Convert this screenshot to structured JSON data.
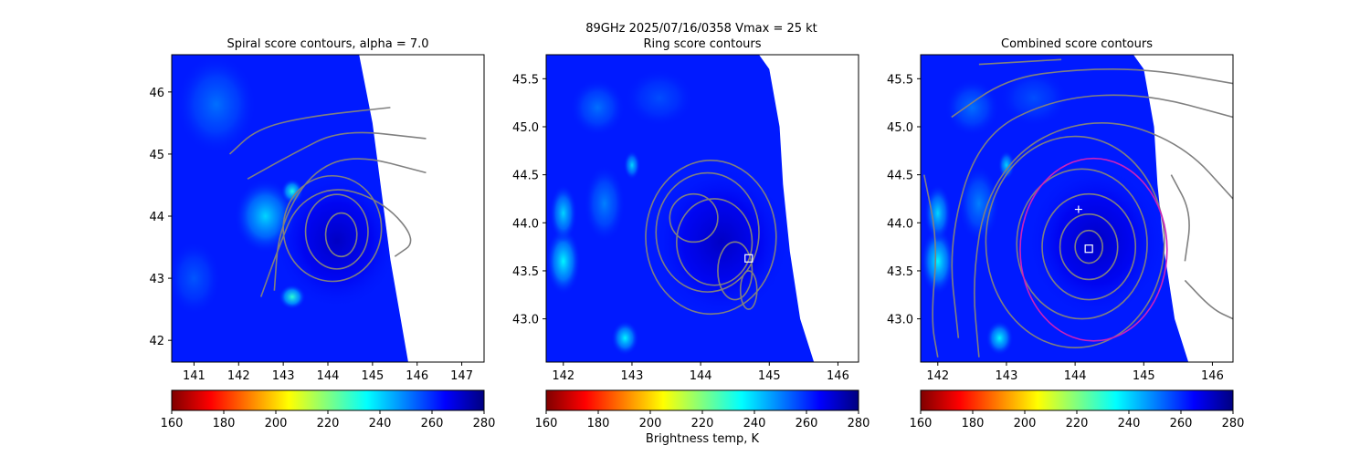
{
  "figure": {
    "suptitle_line1": "89GHz  2025/07/16/0358    Vmax = 25 kt",
    "colorbar_label": "Brightness temp, K"
  },
  "colormap": {
    "name": "jet_r",
    "stops": [
      "#800000",
      "#ff0000",
      "#ff8000",
      "#ffff00",
      "#80ff80",
      "#00ffff",
      "#0080ff",
      "#0000ff",
      "#000080"
    ]
  },
  "contour_color": "#808080",
  "ring_circle_color": "#cc22bb",
  "chart_data": [
    {
      "type": "heatmap",
      "title": "Spiral score contours, alpha =  7.0",
      "xlim": [
        140.5,
        147.5
      ],
      "ylim": [
        41.65,
        46.6
      ],
      "x_ticks": [
        141,
        142,
        143,
        144,
        145,
        146,
        147
      ],
      "y_ticks": [
        42,
        43,
        44,
        45,
        46
      ],
      "colorbar": {
        "min": 160,
        "max": 280,
        "ticks": [
          160,
          180,
          200,
          220,
          240,
          260,
          280
        ]
      },
      "swath_right_edge": [
        [
          145.8,
          41.65
        ],
        [
          145.4,
          43.3
        ],
        [
          145.0,
          45.5
        ],
        [
          144.7,
          46.6
        ]
      ],
      "tb_features": [
        {
          "x": 142.6,
          "y": 44.0,
          "tb": 240,
          "rx": 0.7,
          "ry": 0.6
        },
        {
          "x": 143.2,
          "y": 42.7,
          "tb": 230,
          "rx": 0.3,
          "ry": 0.2
        },
        {
          "x": 143.2,
          "y": 44.4,
          "tb": 232,
          "rx": 0.25,
          "ry": 0.2
        },
        {
          "x": 141.5,
          "y": 45.8,
          "tb": 252,
          "rx": 0.9,
          "ry": 0.8
        },
        {
          "x": 141.0,
          "y": 43.0,
          "tb": 255,
          "rx": 0.6,
          "ry": 0.6
        },
        {
          "x": 144.2,
          "y": 43.6,
          "tb": 272,
          "rx": 1.4,
          "ry": 1.1
        }
      ],
      "contours": [
        {
          "type": "ellipse",
          "cx": 144.3,
          "cy": 43.7,
          "rx": 0.35,
          "ry": 0.35
        },
        {
          "type": "ellipse",
          "cx": 144.2,
          "cy": 43.75,
          "rx": 0.7,
          "ry": 0.6
        },
        {
          "type": "ellipse",
          "cx": 144.1,
          "cy": 43.8,
          "rx": 1.1,
          "ry": 0.85
        },
        {
          "type": "line",
          "points": [
            [
              142.5,
              42.7
            ],
            [
              142.9,
              43.5
            ],
            [
              143.3,
              44.2
            ],
            [
              144.2,
              44.5
            ],
            [
              145.3,
              44.2
            ],
            [
              146.0,
              43.6
            ],
            [
              145.5,
              43.35
            ]
          ]
        },
        {
          "type": "line",
          "points": [
            [
              142.8,
              42.8
            ],
            [
              142.9,
              43.8
            ],
            [
              143.6,
              44.7
            ],
            [
              144.6,
              45.0
            ],
            [
              146.2,
              44.7
            ]
          ]
        },
        {
          "type": "line",
          "points": [
            [
              142.2,
              44.6
            ],
            [
              143.2,
              45.0
            ],
            [
              144.3,
              45.4
            ],
            [
              146.2,
              45.25
            ]
          ]
        },
        {
          "type": "line",
          "points": [
            [
              141.8,
              45.0
            ],
            [
              142.4,
              45.4
            ],
            [
              143.5,
              45.6
            ],
            [
              145.4,
              45.75
            ]
          ]
        }
      ]
    },
    {
      "type": "heatmap",
      "title": "Ring score contours",
      "xlim": [
        141.75,
        146.3
      ],
      "ylim": [
        42.55,
        45.75
      ],
      "x_ticks": [
        142,
        143,
        144,
        145,
        146
      ],
      "y_ticks": [
        43.0,
        43.5,
        44.0,
        44.5,
        45.0,
        45.5
      ],
      "colorbar": {
        "min": 160,
        "max": 280,
        "ticks": [
          160,
          180,
          200,
          220,
          240,
          260,
          280
        ]
      },
      "swath_right_edge": [
        [
          145.65,
          42.55
        ],
        [
          145.45,
          43.0
        ],
        [
          145.3,
          43.7
        ],
        [
          145.2,
          44.4
        ],
        [
          145.15,
          45.0
        ],
        [
          145.0,
          45.6
        ],
        [
          144.85,
          45.75
        ]
      ],
      "tb_features": [
        {
          "x": 142.0,
          "y": 43.6,
          "tb": 236,
          "rx": 0.25,
          "ry": 0.35
        },
        {
          "x": 142.0,
          "y": 44.1,
          "tb": 240,
          "rx": 0.2,
          "ry": 0.3
        },
        {
          "x": 142.9,
          "y": 42.8,
          "tb": 236,
          "rx": 0.2,
          "ry": 0.18
        },
        {
          "x": 143.0,
          "y": 44.6,
          "tb": 240,
          "rx": 0.12,
          "ry": 0.15
        },
        {
          "x": 142.5,
          "y": 45.2,
          "tb": 252,
          "rx": 0.4,
          "ry": 0.3
        },
        {
          "x": 143.4,
          "y": 45.3,
          "tb": 256,
          "rx": 0.5,
          "ry": 0.3
        },
        {
          "x": 142.6,
          "y": 44.2,
          "tb": 250,
          "rx": 0.3,
          "ry": 0.4
        },
        {
          "x": 144.3,
          "y": 43.8,
          "tb": 272,
          "rx": 1.0,
          "ry": 0.8
        }
      ],
      "contours": [
        {
          "type": "ellipse",
          "cx": 144.15,
          "cy": 43.85,
          "rx": 0.95,
          "ry": 0.8
        },
        {
          "type": "ellipse",
          "cx": 144.1,
          "cy": 43.9,
          "rx": 0.75,
          "ry": 0.62
        },
        {
          "type": "ellipse",
          "cx": 144.2,
          "cy": 43.8,
          "rx": 0.55,
          "ry": 0.45
        },
        {
          "type": "ellipse",
          "cx": 143.9,
          "cy": 44.05,
          "rx": 0.35,
          "ry": 0.25
        },
        {
          "type": "ellipse",
          "cx": 144.5,
          "cy": 43.5,
          "rx": 0.25,
          "ry": 0.3
        },
        {
          "type": "ellipse",
          "cx": 144.7,
          "cy": 43.3,
          "rx": 0.12,
          "ry": 0.2
        }
      ],
      "markers": [
        {
          "type": "square",
          "x": 144.7,
          "y": 43.63
        }
      ]
    },
    {
      "type": "heatmap",
      "title": "Combined score contours",
      "xlim": [
        141.75,
        146.3
      ],
      "ylim": [
        42.55,
        45.75
      ],
      "x_ticks": [
        142,
        143,
        144,
        145,
        146
      ],
      "y_ticks": [
        43.0,
        43.5,
        44.0,
        44.5,
        45.0,
        45.5
      ],
      "colorbar": {
        "min": 160,
        "max": 280,
        "ticks": [
          160,
          180,
          200,
          220,
          240,
          260,
          280
        ]
      },
      "swath_right_edge": [
        [
          145.65,
          42.55
        ],
        [
          145.45,
          43.0
        ],
        [
          145.3,
          43.7
        ],
        [
          145.2,
          44.4
        ],
        [
          145.15,
          45.0
        ],
        [
          145.0,
          45.6
        ],
        [
          144.85,
          45.75
        ]
      ],
      "tb_features": [
        {
          "x": 142.0,
          "y": 43.6,
          "tb": 236,
          "rx": 0.25,
          "ry": 0.35
        },
        {
          "x": 142.0,
          "y": 44.1,
          "tb": 240,
          "rx": 0.2,
          "ry": 0.3
        },
        {
          "x": 142.9,
          "y": 42.8,
          "tb": 236,
          "rx": 0.2,
          "ry": 0.18
        },
        {
          "x": 143.0,
          "y": 44.6,
          "tb": 240,
          "rx": 0.12,
          "ry": 0.15
        },
        {
          "x": 142.5,
          "y": 45.2,
          "tb": 252,
          "rx": 0.4,
          "ry": 0.3
        },
        {
          "x": 143.4,
          "y": 45.3,
          "tb": 256,
          "rx": 0.5,
          "ry": 0.3
        },
        {
          "x": 142.6,
          "y": 44.2,
          "tb": 250,
          "rx": 0.3,
          "ry": 0.4
        },
        {
          "x": 144.3,
          "y": 43.8,
          "tb": 272,
          "rx": 1.0,
          "ry": 0.8
        }
      ],
      "contours": [
        {
          "type": "ellipse",
          "cx": 144.2,
          "cy": 43.75,
          "rx": 0.2,
          "ry": 0.17
        },
        {
          "type": "ellipse",
          "cx": 144.2,
          "cy": 43.75,
          "rx": 0.42,
          "ry": 0.34
        },
        {
          "type": "ellipse",
          "cx": 144.2,
          "cy": 43.75,
          "rx": 0.68,
          "ry": 0.55
        },
        {
          "type": "ellipse",
          "cx": 144.1,
          "cy": 43.78,
          "rx": 0.95,
          "ry": 0.78
        },
        {
          "type": "ellipse",
          "cx": 144.0,
          "cy": 43.8,
          "rx": 1.3,
          "ry": 1.1
        },
        {
          "type": "line",
          "points": [
            [
              142.6,
              42.6
            ],
            [
              142.5,
              43.4
            ],
            [
              142.7,
              44.3
            ],
            [
              143.4,
              44.9
            ],
            [
              144.5,
              45.1
            ],
            [
              145.6,
              44.8
            ],
            [
              146.3,
              44.25
            ]
          ]
        },
        {
          "type": "line",
          "points": [
            [
              142.3,
              42.8
            ],
            [
              142.15,
              43.8
            ],
            [
              142.6,
              44.9
            ],
            [
              143.7,
              45.3
            ],
            [
              145.0,
              45.35
            ],
            [
              146.3,
              45.1
            ]
          ]
        },
        {
          "type": "line",
          "points": [
            [
              142.2,
              45.1
            ],
            [
              143.0,
              45.5
            ],
            [
              144.0,
              45.6
            ],
            [
              145.1,
              45.6
            ],
            [
              146.3,
              45.45
            ]
          ]
        },
        {
          "type": "line",
          "points": [
            [
              142.6,
              45.65
            ],
            [
              143.8,
              45.7
            ]
          ]
        },
        {
          "type": "line",
          "points": [
            [
              141.8,
              44.5
            ],
            [
              142.0,
              43.8
            ],
            [
              141.9,
              43.0
            ],
            [
              142.0,
              42.6
            ]
          ]
        },
        {
          "type": "line",
          "points": [
            [
              145.6,
              43.4
            ],
            [
              146.0,
              43.1
            ],
            [
              146.3,
              43.0
            ]
          ]
        },
        {
          "type": "line",
          "points": [
            [
              145.4,
              44.5
            ],
            [
              145.7,
              44.1
            ],
            [
              145.6,
              43.6
            ]
          ]
        }
      ],
      "ring_circle": {
        "cx": 144.27,
        "cy": 43.72,
        "rx": 1.07,
        "ry": 0.95
      },
      "markers": [
        {
          "type": "square",
          "x": 144.2,
          "y": 43.73
        },
        {
          "type": "plus",
          "x": 144.05,
          "y": 44.14
        }
      ]
    }
  ]
}
